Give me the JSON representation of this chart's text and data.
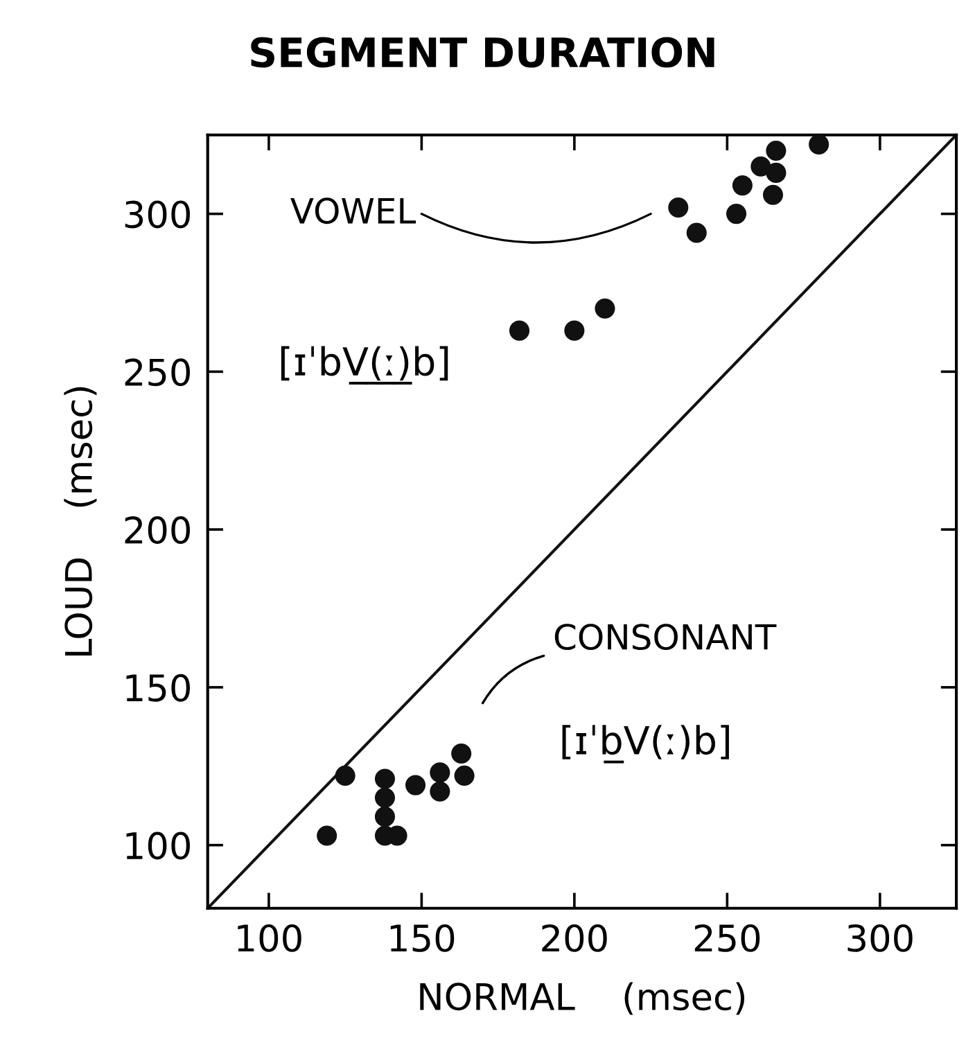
{
  "chart_data": {
    "type": "scatter",
    "title": "SEGMENT DURATION",
    "xlabel": "NORMAL    (msec)",
    "ylabel": "LOUD    (msec)",
    "xlim": [
      80,
      325
    ],
    "ylim": [
      80,
      325
    ],
    "xticks": [
      100,
      150,
      200,
      250,
      300
    ],
    "yticks": [
      100,
      150,
      200,
      250,
      300
    ],
    "grid": false,
    "marker": "circle",
    "series": [
      {
        "color": "#111111",
        "x": [
          182,
          200,
          210,
          234,
          240,
          253,
          255,
          265,
          261,
          266,
          266,
          280
        ],
        "values": [
          263,
          263,
          270,
          302,
          294,
          300,
          309,
          306,
          315,
          313,
          320,
          322
        ]
      },
      {
        "color": "#111111",
        "x": [
          119,
          125,
          138,
          138,
          138,
          138,
          142,
          148,
          156,
          156,
          163,
          164
        ],
        "values": [
          103,
          122,
          121,
          115,
          109,
          103,
          103,
          119,
          123,
          117,
          129,
          122
        ]
      },
      {
        "type": "line",
        "color": "#111111",
        "marker": "none",
        "x": [
          80,
          325
        ],
        "values": [
          80,
          325
        ]
      }
    ],
    "annotations": [
      "VOWEL",
      "[ɪˈbV̲(̲ː̲)̲b]",
      "CONSONANT",
      "[ɪˈb̲V(ː)b]"
    ]
  }
}
